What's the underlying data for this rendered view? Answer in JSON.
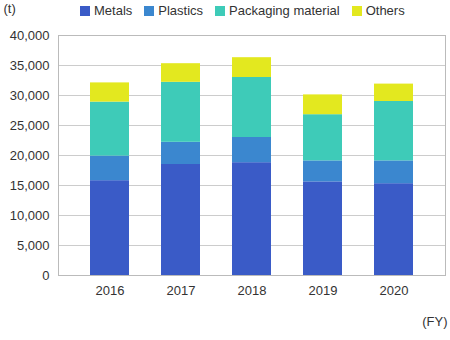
{
  "chart_data": {
    "type": "bar",
    "stacked": true,
    "categories": [
      "2016",
      "2017",
      "2018",
      "2019",
      "2020"
    ],
    "series": [
      {
        "name": "Metals",
        "color": "#3a5bc7",
        "values": [
          15800,
          18500,
          18800,
          15600,
          15300
        ]
      },
      {
        "name": "Plastics",
        "color": "#3b87cf",
        "values": [
          4100,
          3700,
          4200,
          3500,
          3800
        ]
      },
      {
        "name": "Packaging material",
        "color": "#3ecbb8",
        "values": [
          9000,
          10000,
          10000,
          7700,
          9900
        ]
      },
      {
        "name": "Others",
        "color": "#e3e81f",
        "values": [
          3200,
          3100,
          3300,
          3300,
          2900
        ]
      }
    ],
    "y_label": "(t)",
    "x_label": "(FY)",
    "ylim": [
      0,
      40000
    ],
    "yticks": [
      0,
      {
        "value": 5000,
        "label": "5,000"
      },
      {
        "value": 10000,
        "label": "10,000"
      },
      {
        "value": 15000,
        "label": "15,000"
      },
      {
        "value": 20000,
        "label": "20,000"
      },
      {
        "value": 25000,
        "label": "25,000"
      },
      {
        "value": 30000,
        "label": "30,000"
      },
      {
        "value": 35000,
        "label": "35,000"
      },
      {
        "value": 40000,
        "label": "40,000"
      }
    ],
    "grid": true,
    "legend": "top"
  }
}
